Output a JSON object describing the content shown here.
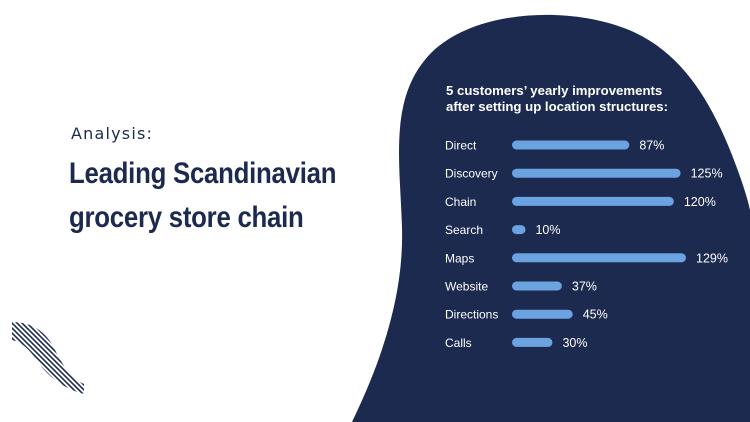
{
  "slide": {
    "eyebrow": "Analysis:",
    "headline_line1": "Leading Scandinavian",
    "headline_line2": "grocery store chain"
  },
  "colors": {
    "navy": "#1c2a4f",
    "bar": "#6aa3df",
    "background": "#ffffff",
    "label": "#ffffff"
  },
  "chart_data": {
    "type": "bar",
    "orientation": "horizontal",
    "title_line1": "5 customers’ yearly improvements",
    "title_line2": "after setting up location structures:",
    "categories": [
      "Direct",
      "Discovery",
      "Chain",
      "Search",
      "Maps",
      "Website",
      "Directions",
      "Calls"
    ],
    "values": [
      87,
      125,
      120,
      10,
      129,
      37,
      45,
      30
    ],
    "value_labels": [
      "87%",
      "125%",
      "120%",
      "10%",
      "129%",
      "37%",
      "45%",
      "30%"
    ],
    "unit": "%",
    "xlim": [
      0,
      129
    ],
    "grid": false,
    "legend": "none"
  }
}
